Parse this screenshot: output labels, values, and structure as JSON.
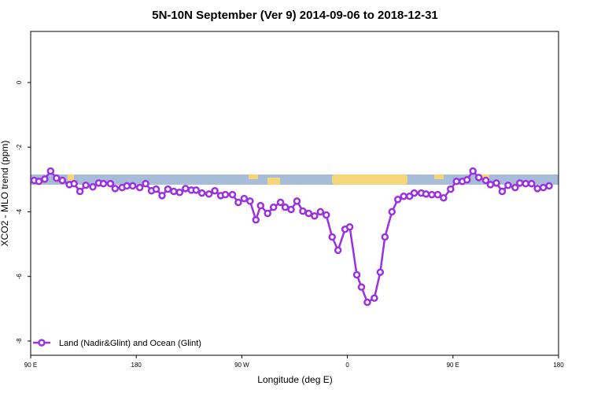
{
  "chart_data": {
    "type": "line",
    "title": "5N-10N September (Ver 9)   2014-09-06 to 2018-12-31",
    "x_label": "Longitude (deg E)",
    "y_label": "XCO2 - MLO trend (ppm)",
    "xlim": [
      -270,
      180
    ],
    "ylim": [
      -8.44,
      1.58
    ],
    "xticks": [
      {
        "value": -270,
        "label": "90 E"
      },
      {
        "value": -180,
        "label": "180"
      },
      {
        "value": -90,
        "label": "90 W"
      },
      0,
      {
        "value": 90,
        "label": "90 E"
      },
      180
    ],
    "yticks": [
      0,
      -2,
      -4,
      -6,
      -8
    ],
    "legend": "bottom-left",
    "series": [
      {
        "name": "Land (Nadir&Glint) and Ocean (Glint)",
        "color": "#9b30e0",
        "x": [
          -267,
          -263,
          -258,
          -253,
          -248,
          -243,
          -237,
          -233,
          -228,
          -223,
          -217,
          -212,
          -208,
          -202,
          -198,
          -192,
          -188,
          -183,
          -177,
          -172,
          -167,
          -163,
          -158,
          -153,
          -148,
          -143,
          -138,
          -133,
          -129,
          -124,
          -118,
          -113,
          -108,
          -104,
          -98,
          -93,
          -88,
          -83,
          -78,
          -74,
          -68,
          -63,
          -57,
          -53,
          -48,
          -43,
          -38,
          -33,
          -28,
          -23,
          -18,
          -13,
          -8,
          -2,
          2,
          8,
          12,
          17,
          23,
          28,
          32,
          38,
          43,
          48,
          53,
          57,
          63,
          67,
          72,
          77,
          82,
          88,
          93,
          98,
          102,
          107,
          112,
          118,
          122,
          127,
          132,
          137,
          143,
          147,
          152,
          157,
          162,
          167,
          172
        ],
        "values": [
          -3.03,
          -3.06,
          -2.99,
          -2.74,
          -2.96,
          -3.03,
          -3.16,
          -3.13,
          -3.37,
          -3.18,
          -3.23,
          -3.11,
          -3.13,
          -3.13,
          -3.28,
          -3.25,
          -3.2,
          -3.2,
          -3.25,
          -3.13,
          -3.35,
          -3.3,
          -3.5,
          -3.3,
          -3.37,
          -3.4,
          -3.28,
          -3.33,
          -3.33,
          -3.42,
          -3.45,
          -3.35,
          -3.5,
          -3.47,
          -3.47,
          -3.71,
          -3.59,
          -3.67,
          -4.25,
          -3.81,
          -4.05,
          -3.86,
          -3.71,
          -3.86,
          -3.93,
          -3.67,
          -3.98,
          -4.05,
          -4.13,
          -4.0,
          -4.1,
          -4.78,
          -5.19,
          -4.54,
          -4.47,
          -5.95,
          -6.33,
          -6.8,
          -6.67,
          -5.87,
          -4.78,
          -4.0,
          -3.62,
          -3.52,
          -3.52,
          -3.42,
          -3.42,
          -3.45,
          -3.47,
          -3.47,
          -3.57,
          -3.3,
          -3.06,
          -3.06,
          -3.01,
          -2.74,
          -2.94,
          -3.03,
          -3.16,
          -3.11,
          -3.37,
          -3.18,
          -3.25,
          -3.11,
          -3.13,
          -3.13,
          -3.28,
          -3.25,
          -3.2
        ]
      }
    ]
  }
}
